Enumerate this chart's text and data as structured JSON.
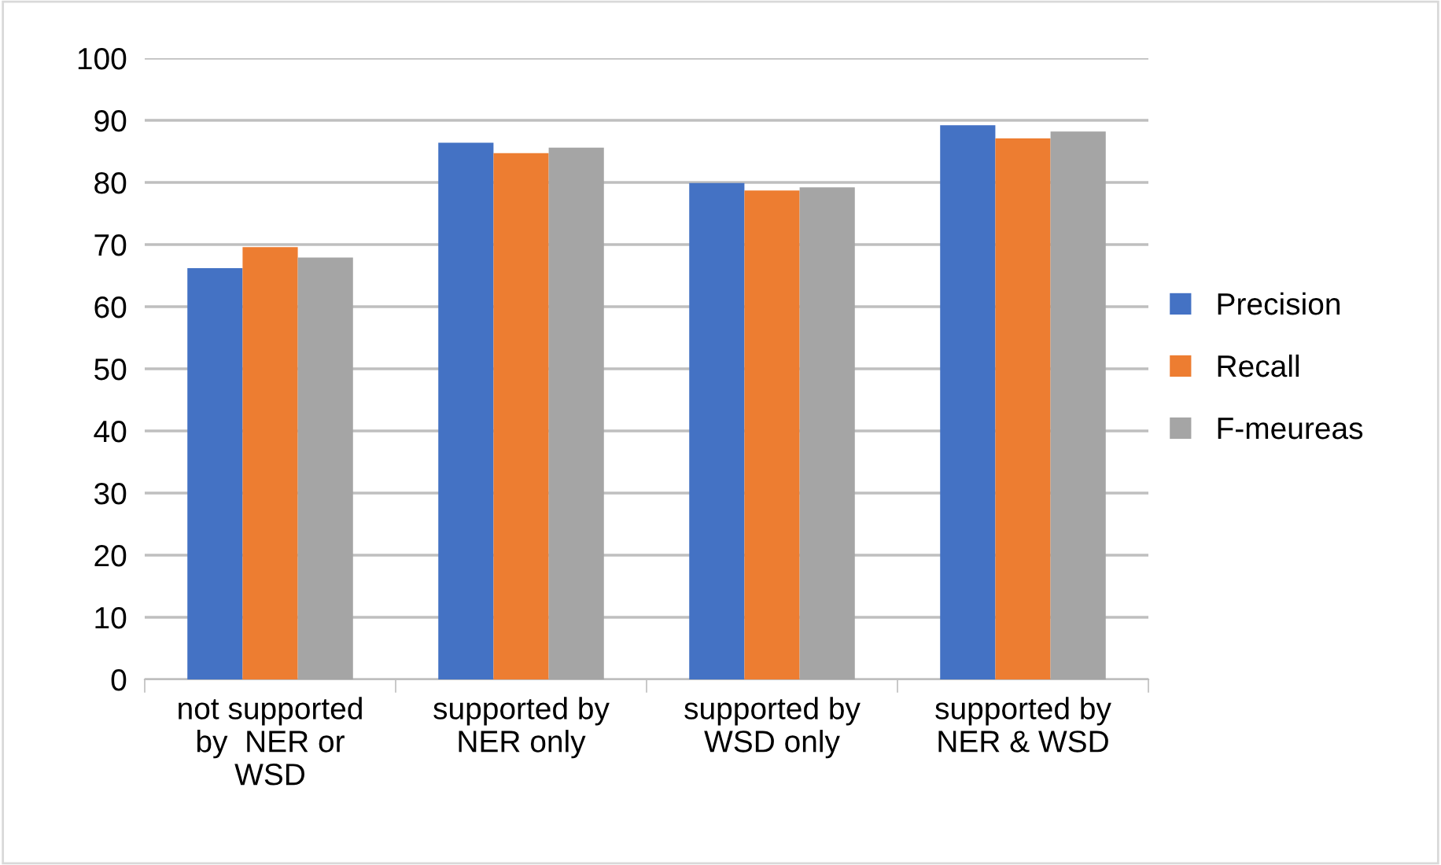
{
  "chart_data": {
    "type": "bar",
    "categories": [
      "not supported\nby  NER or\nWSD",
      "supported by\nNER only",
      "supported by\nWSD only",
      "supported by\nNER & WSD"
    ],
    "series": [
      {
        "name": "Precision",
        "color": "#4472c4",
        "values": [
          66.2,
          86.4,
          79.9,
          89.2
        ]
      },
      {
        "name": "Recall",
        "color": "#ed7d31",
        "values": [
          69.6,
          84.7,
          78.7,
          87.1
        ]
      },
      {
        "name": "F-meureas",
        "color": "#a5a5a5",
        "values": [
          67.9,
          85.6,
          79.2,
          88.2
        ]
      }
    ],
    "ylim": [
      0,
      100
    ],
    "yticks": [
      0,
      10,
      20,
      30,
      40,
      50,
      60,
      70,
      80,
      90,
      100
    ],
    "grid": "y",
    "legend": "right"
  }
}
